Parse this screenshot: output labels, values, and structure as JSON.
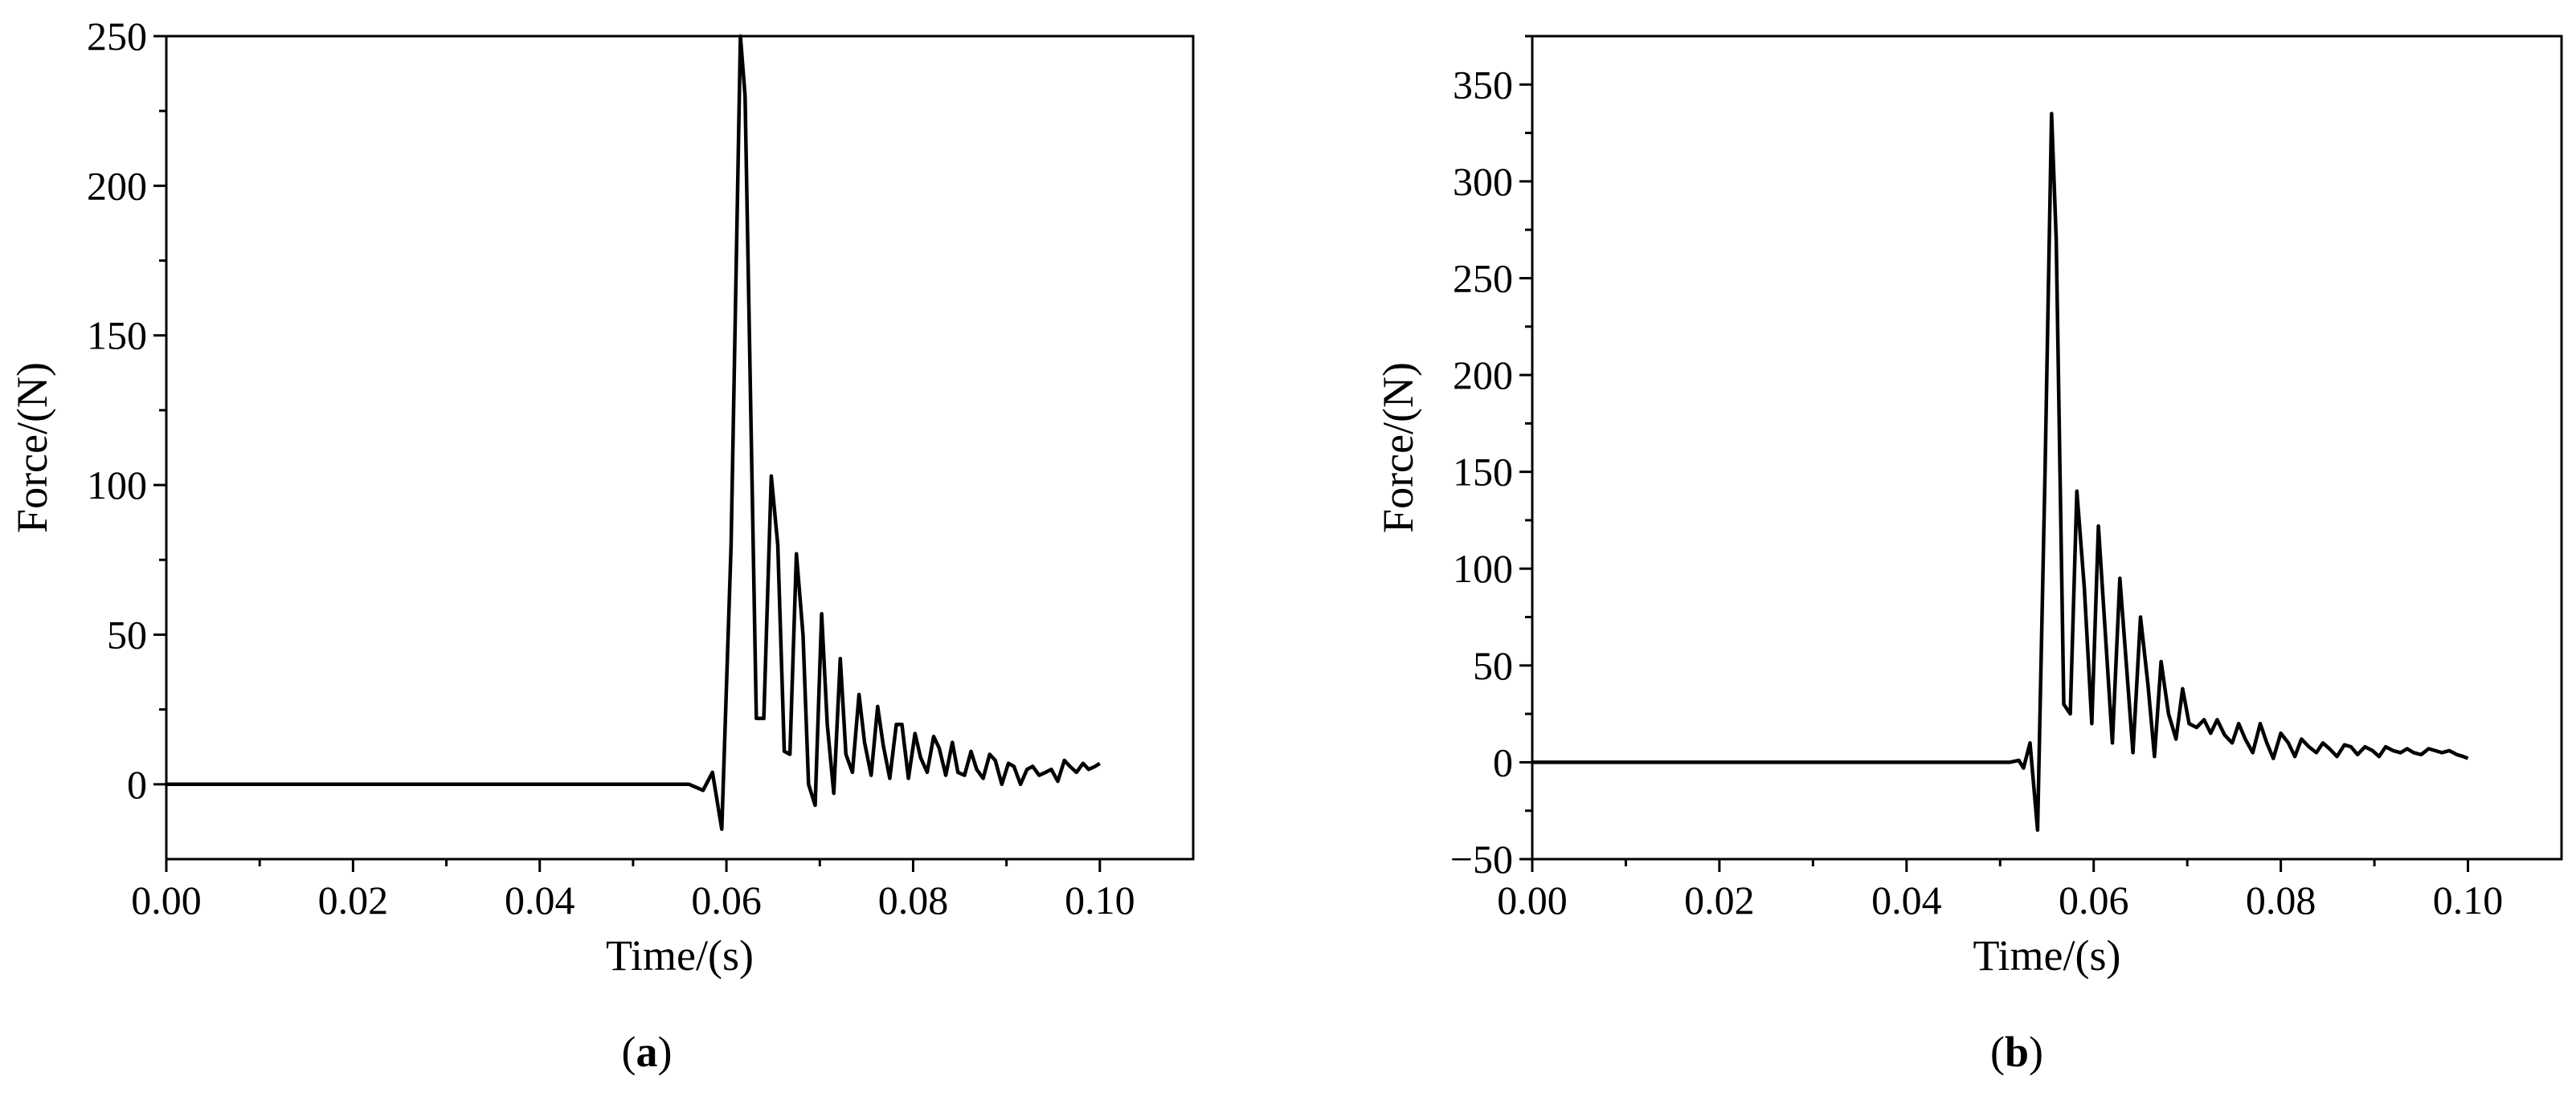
{
  "chart_data": [
    {
      "type": "line",
      "panel_label": "(a)",
      "panel_letter": "a",
      "xlabel": "Time/(s)",
      "ylabel": "Force/(N)",
      "xlim": [
        0.0,
        0.11
      ],
      "ylim": [
        -25,
        250
      ],
      "xticks": [
        "0.00",
        "0.02",
        "0.04",
        "0.06",
        "0.08",
        "0.10"
      ],
      "yticks": [
        "0",
        "50",
        "100",
        "150",
        "200",
        "250"
      ],
      "x": [
        0.0,
        0.01,
        0.02,
        0.03,
        0.04,
        0.05,
        0.056,
        0.0575,
        0.0585,
        0.0595,
        0.0605,
        0.0615,
        0.062,
        0.0632,
        0.064,
        0.0648,
        0.0655,
        0.0662,
        0.0668,
        0.0675,
        0.0682,
        0.0688,
        0.0695,
        0.0702,
        0.0708,
        0.0715,
        0.0722,
        0.0728,
        0.0735,
        0.0742,
        0.0748,
        0.0755,
        0.0762,
        0.0768,
        0.0775,
        0.0782,
        0.0788,
        0.0795,
        0.0802,
        0.0808,
        0.0815,
        0.0822,
        0.0828,
        0.0835,
        0.0842,
        0.0848,
        0.0855,
        0.0862,
        0.0868,
        0.0875,
        0.0882,
        0.0888,
        0.0895,
        0.0902,
        0.0908,
        0.0915,
        0.0922,
        0.0928,
        0.0935,
        0.0942,
        0.0948,
        0.0955,
        0.0962,
        0.0968,
        0.0975,
        0.0982,
        0.0988,
        0.0995,
        0.1
      ],
      "y": [
        0,
        0,
        0,
        0,
        0,
        0,
        0,
        -2,
        4,
        -15,
        80,
        250,
        230,
        22,
        22,
        103,
        80,
        11,
        10,
        77,
        50,
        0,
        -7,
        57,
        20,
        -3,
        42,
        10,
        4,
        30,
        14,
        3,
        26,
        13,
        2,
        20,
        20,
        2,
        17,
        9,
        4,
        16,
        12,
        3,
        14,
        4,
        3,
        11,
        5,
        2,
        10,
        8,
        0,
        7,
        6,
        0,
        5,
        6,
        3,
        4,
        5,
        1,
        8,
        6,
        4,
        7,
        5,
        6,
        7
      ]
    },
    {
      "type": "line",
      "panel_label": "(b)",
      "panel_letter": "b",
      "xlabel": "Time/(s)",
      "ylabel": "Force/(N)",
      "xlim": [
        0.0,
        0.11
      ],
      "ylim": [
        -50,
        375
      ],
      "xticks": [
        "0.00",
        "0.02",
        "0.04",
        "0.06",
        "0.08",
        "0.10"
      ],
      "yticks": [
        "−50",
        "0",
        "50",
        "100",
        "150",
        "200",
        "250",
        "300",
        "350"
      ],
      "x": [
        0.0,
        0.01,
        0.02,
        0.03,
        0.04,
        0.05,
        0.051,
        0.052,
        0.0525,
        0.0532,
        0.054,
        0.0548,
        0.0555,
        0.056,
        0.0568,
        0.0575,
        0.0582,
        0.059,
        0.0598,
        0.0605,
        0.0612,
        0.062,
        0.0628,
        0.0635,
        0.0642,
        0.065,
        0.0658,
        0.0665,
        0.0672,
        0.068,
        0.0688,
        0.0695,
        0.0702,
        0.071,
        0.0718,
        0.0725,
        0.0732,
        0.074,
        0.0748,
        0.0755,
        0.0762,
        0.077,
        0.0778,
        0.0785,
        0.0792,
        0.08,
        0.0808,
        0.0815,
        0.0822,
        0.083,
        0.0838,
        0.0845,
        0.0852,
        0.086,
        0.0868,
        0.0875,
        0.0882,
        0.089,
        0.0898,
        0.0905,
        0.0912,
        0.092,
        0.0928,
        0.0935,
        0.0942,
        0.095,
        0.0958,
        0.0965,
        0.0972,
        0.098,
        0.0988,
        0.0995,
        0.1
      ],
      "y": [
        0,
        0,
        0,
        0,
        0,
        0,
        0,
        1,
        -3,
        10,
        -35,
        150,
        335,
        270,
        30,
        25,
        140,
        90,
        20,
        122,
        70,
        10,
        95,
        50,
        5,
        75,
        40,
        3,
        52,
        25,
        12,
        38,
        20,
        18,
        22,
        15,
        22,
        14,
        10,
        20,
        12,
        5,
        20,
        10,
        2,
        15,
        10,
        3,
        12,
        8,
        5,
        10,
        7,
        3,
        9,
        8,
        4,
        8,
        6,
        3,
        8,
        6,
        5,
        7,
        5,
        4,
        7,
        6,
        5,
        6,
        4,
        3,
        2
      ]
    }
  ]
}
